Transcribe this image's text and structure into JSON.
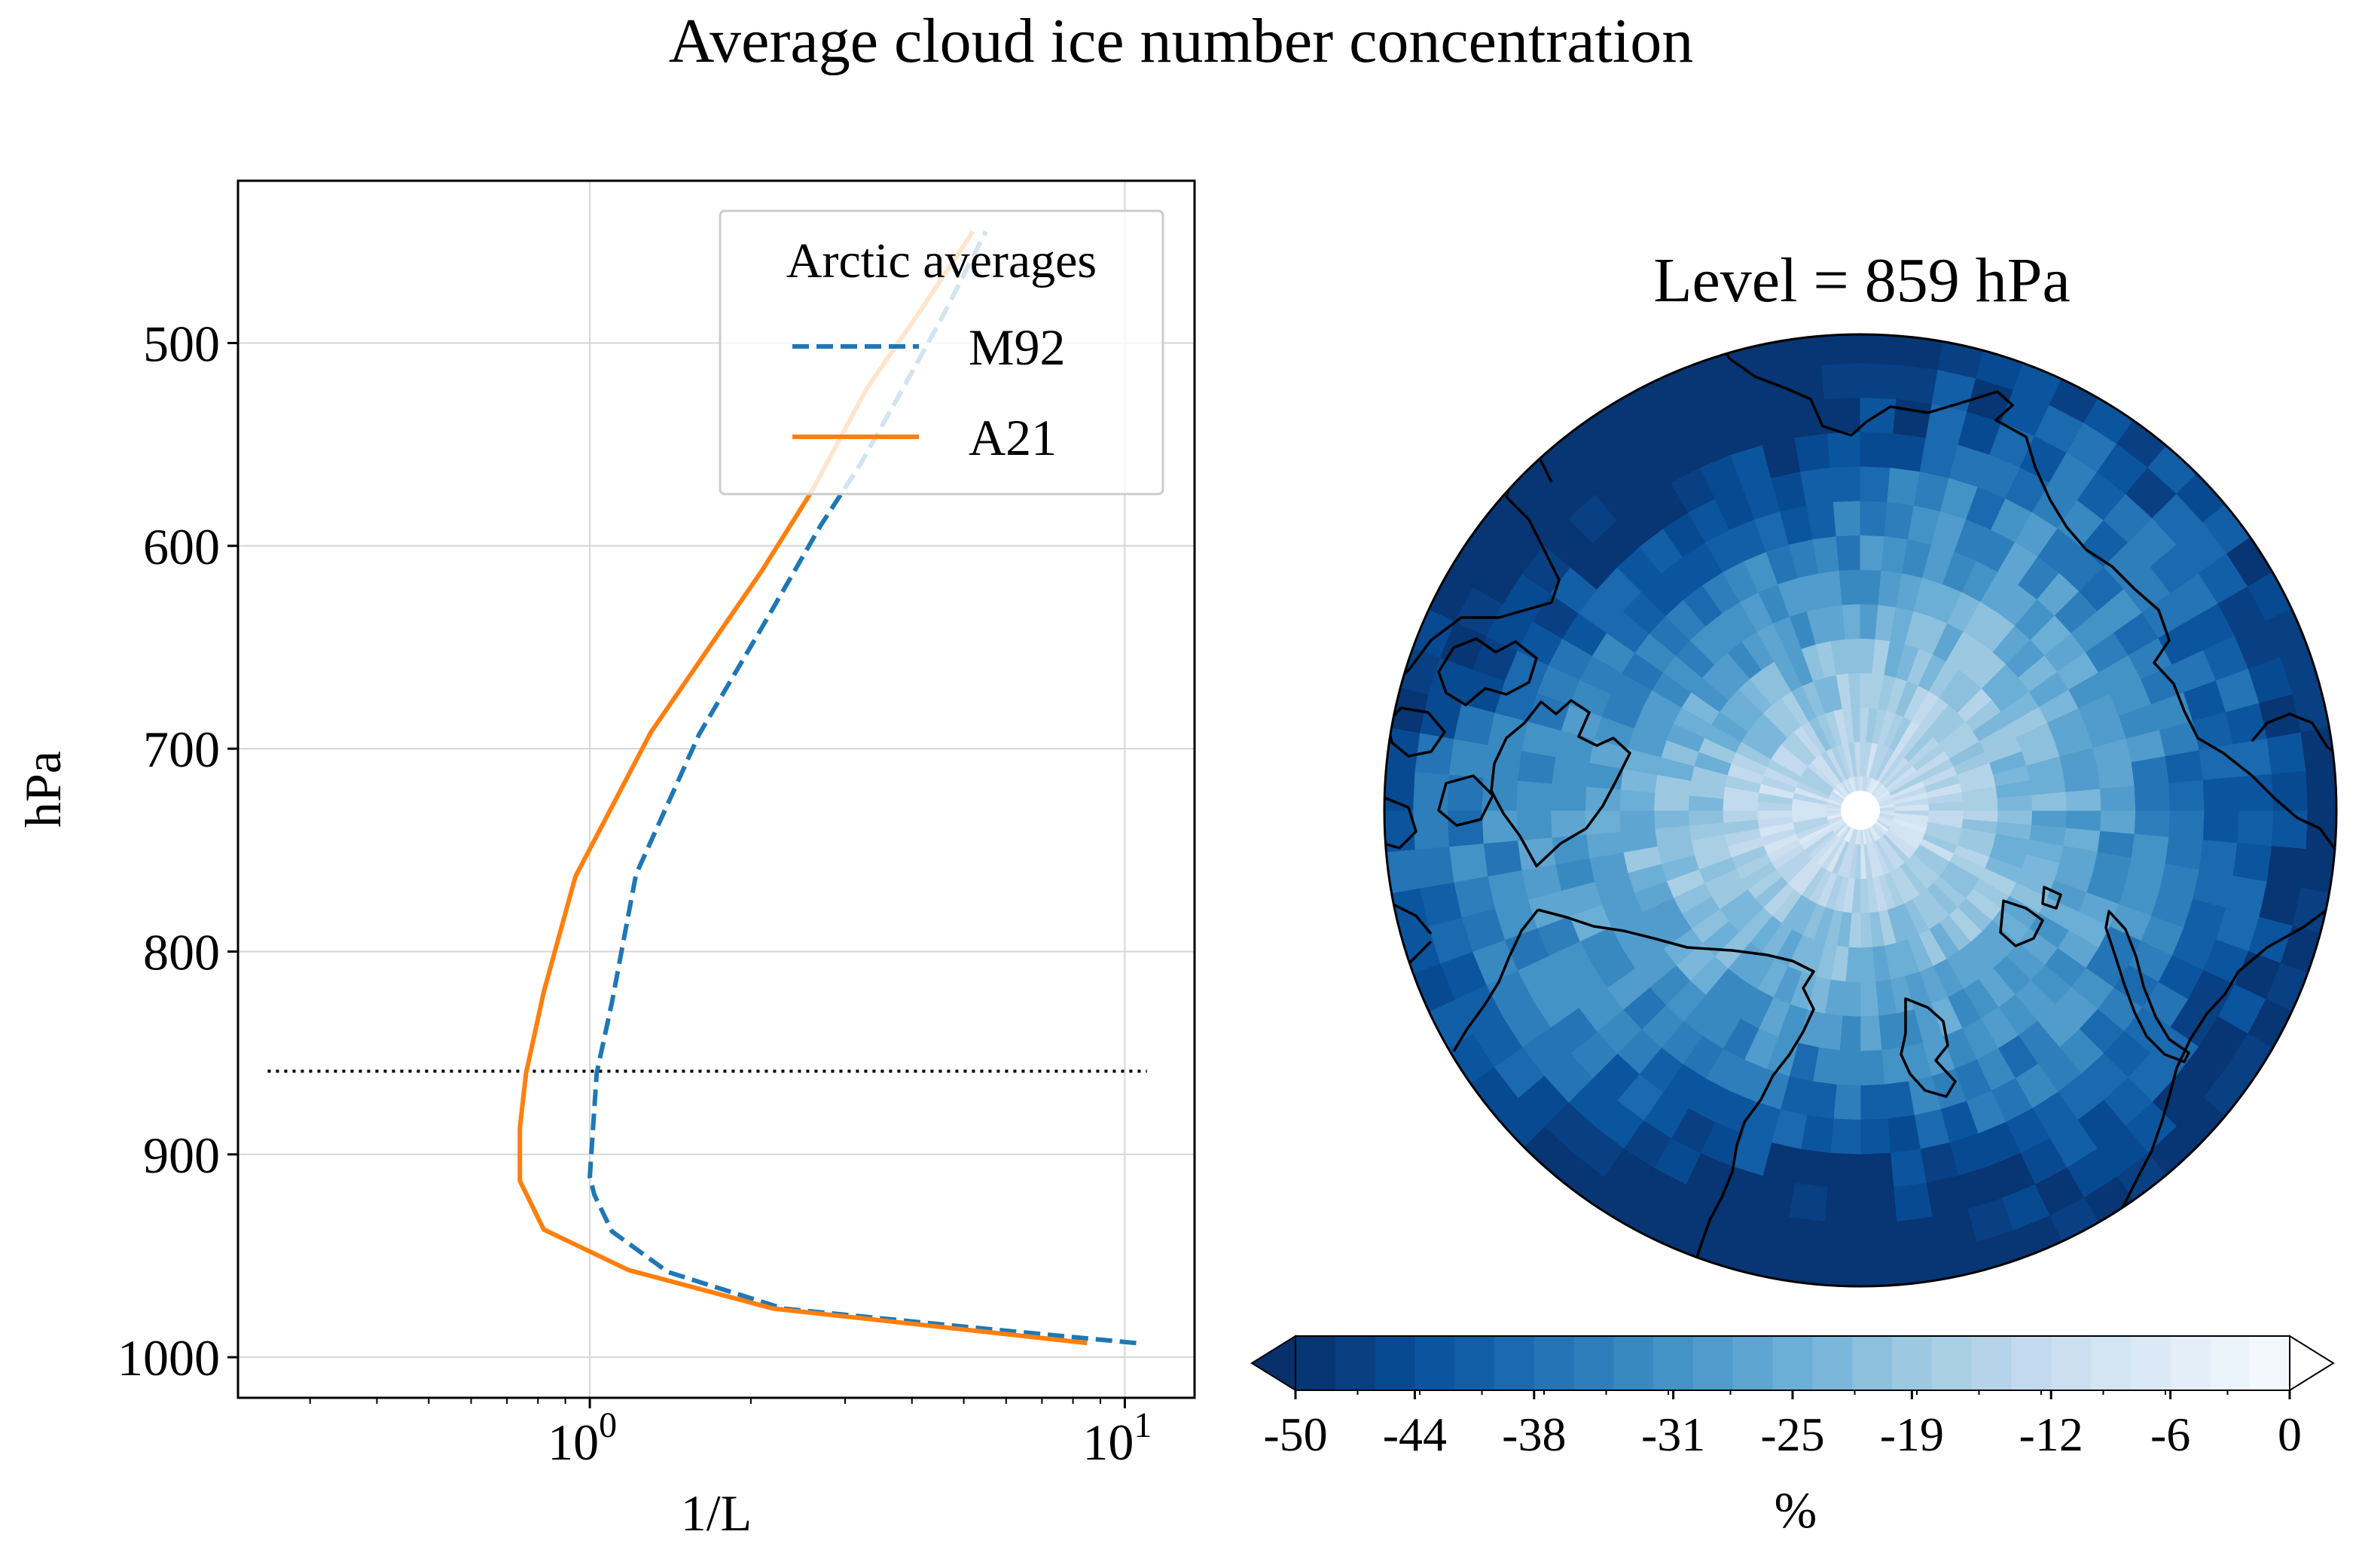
{
  "figure_title": "Average cloud ice number concentration",
  "chart_data": [
    {
      "type": "line",
      "xlabel": "1/L",
      "ylabel": "hPa",
      "xscale": "log",
      "xlim": [
        0.22,
        13.5
      ],
      "ylim": [
        1020,
        420
      ],
      "x_major_ticks": [
        1,
        10
      ],
      "x_tick_labels": [
        {
          "base": "10",
          "exp": "0"
        },
        {
          "base": "10",
          "exp": "1"
        }
      ],
      "y_ticks": [
        500,
        600,
        700,
        800,
        900,
        1000
      ],
      "y_tick_labels": [
        "500",
        "600",
        "700",
        "800",
        "900",
        "1000"
      ],
      "grid": true,
      "legend": {
        "title": "Arctic averages",
        "placement": "top-right"
      },
      "series": [
        {
          "name": "M92",
          "style": "dashed",
          "color": "#1f77b4",
          "points": [
            [
              10.5,
              993
            ],
            [
              5.5,
              986
            ],
            [
              2.3,
              976
            ],
            [
              1.4,
              958
            ],
            [
              1.1,
              938
            ],
            [
              1.02,
              920
            ],
            [
              1.0,
              911
            ],
            [
              1.03,
              860
            ],
            [
              1.1,
              825
            ],
            [
              1.22,
              762
            ],
            [
              1.6,
              693
            ],
            [
              2.1,
              640
            ],
            [
              2.7,
              590
            ],
            [
              3.2,
              560
            ],
            [
              3.8,
              525
            ],
            [
              4.5,
              490
            ],
            [
              5.5,
              445
            ]
          ]
        },
        {
          "name": "A21",
          "style": "solid",
          "color": "#ff7f0e",
          "points": [
            [
              8.5,
              993
            ],
            [
              4.5,
              985
            ],
            [
              2.2,
              976
            ],
            [
              1.18,
              957
            ],
            [
              0.82,
              937
            ],
            [
              0.74,
              913
            ],
            [
              0.74,
              887
            ],
            [
              0.76,
              860
            ],
            [
              0.82,
              820
            ],
            [
              0.94,
              763
            ],
            [
              1.3,
              692
            ],
            [
              2.1,
              612
            ],
            [
              2.6,
              573
            ],
            [
              3.3,
              522
            ],
            [
              4.2,
              482
            ],
            [
              5.2,
              445
            ]
          ]
        }
      ],
      "reference_line": {
        "pressure_hpa": 859,
        "x_range": [
          0.25,
          11
        ],
        "style": "dotted",
        "color": "#000000"
      }
    },
    {
      "type": "heatmap",
      "projection": "north-polar-stereographic",
      "title": "Level = 859 hPa",
      "colormap": "Blues_r",
      "color_stops": [
        "#08306b",
        "#08519c",
        "#2171b5",
        "#4292c6",
        "#6baed6",
        "#9ecae1",
        "#c6dbef",
        "#deebf7",
        "#f7fbff"
      ],
      "pole_color": "#ffffff",
      "coastline_color": "#000000",
      "colorbar": {
        "label": "%",
        "range": [
          -50,
          0
        ],
        "levels": 25,
        "extend": "both",
        "ticks": [
          -50,
          -44,
          -38,
          -31,
          -25,
          -19,
          -12,
          -6,
          0
        ],
        "tick_labels": [
          "-50",
          "-44",
          "-38",
          "-31",
          "-25",
          "-19",
          "-12",
          "-6",
          "0"
        ]
      }
    }
  ]
}
